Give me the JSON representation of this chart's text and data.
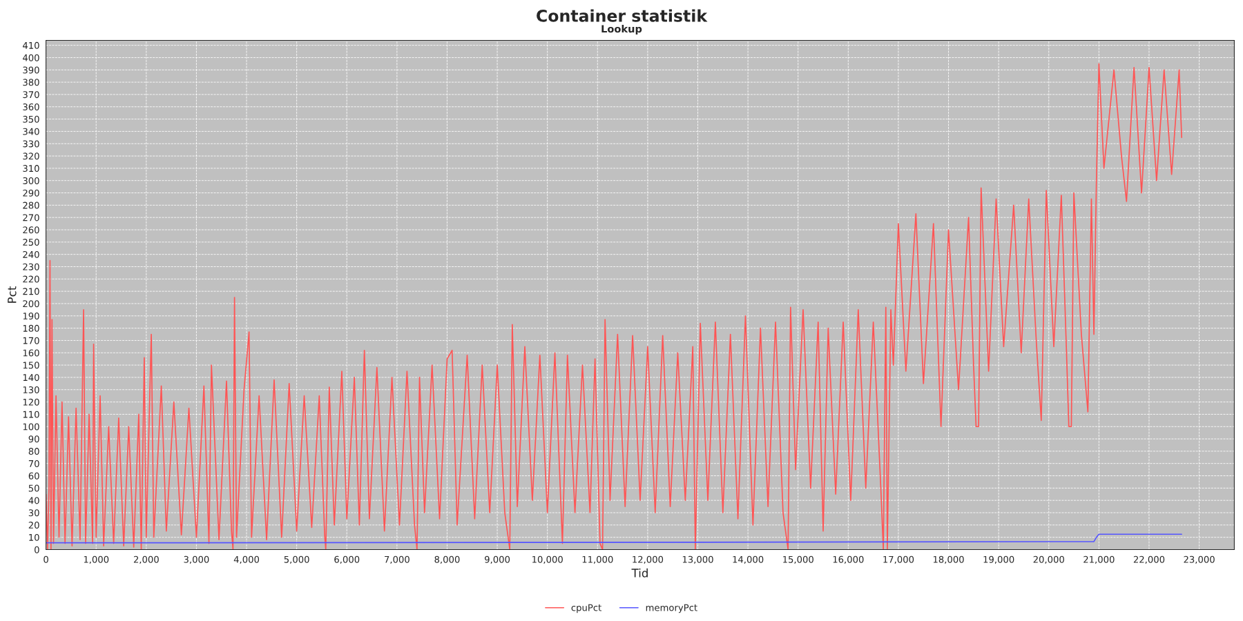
{
  "chart_data": {
    "type": "line",
    "title": "Container statistik",
    "subtitle": "Lookup",
    "xlabel": "Tid",
    "ylabel": "Pct",
    "xlim": [
      0,
      23700
    ],
    "ylim": [
      0,
      414
    ],
    "xticks": [
      0,
      {
        "value": 1000,
        "label": "1,000"
      },
      {
        "value": 2000,
        "label": "2,000"
      },
      {
        "value": 3000,
        "label": "3,000"
      },
      {
        "value": 4000,
        "label": "4,000"
      },
      {
        "value": 5000,
        "label": "5,000"
      },
      {
        "value": 6000,
        "label": "6,000"
      },
      {
        "value": 7000,
        "label": "7,000"
      },
      {
        "value": 8000,
        "label": "8,000"
      },
      {
        "value": 9000,
        "label": "9,000"
      },
      {
        "value": 10000,
        "label": "10,000"
      },
      {
        "value": 11000,
        "label": "11,000"
      },
      {
        "value": 12000,
        "label": "12,000"
      },
      {
        "value": 13000,
        "label": "13,000"
      },
      {
        "value": 14000,
        "label": "14,000"
      },
      {
        "value": 15000,
        "label": "15,000"
      },
      {
        "value": 16000,
        "label": "16,000"
      },
      {
        "value": 17000,
        "label": "17,000"
      },
      {
        "value": 18000,
        "label": "18,000"
      },
      {
        "value": 19000,
        "label": "19,000"
      },
      {
        "value": 20000,
        "label": "20,000"
      },
      {
        "value": 21000,
        "label": "21,000"
      },
      {
        "value": 22000,
        "label": "22,000"
      },
      {
        "value": 23000,
        "label": "23,000"
      }
    ],
    "yticks": [
      0,
      10,
      20,
      30,
      40,
      50,
      60,
      70,
      80,
      90,
      100,
      110,
      120,
      130,
      140,
      150,
      160,
      170,
      180,
      190,
      200,
      210,
      220,
      230,
      240,
      250,
      260,
      270,
      280,
      290,
      300,
      310,
      320,
      330,
      340,
      350,
      360,
      370,
      380,
      390,
      400,
      410
    ],
    "grid": true,
    "legend": "bottom",
    "marker": "none",
    "line_style": "solid",
    "series": [
      {
        "name": "cpuPct",
        "color": "#ff5555",
        "x": [
          0,
          30,
          60,
          80,
          100,
          120,
          150,
          200,
          260,
          320,
          380,
          450,
          520,
          600,
          680,
          750,
          790,
          860,
          930,
          950,
          1000,
          1080,
          1150,
          1250,
          1350,
          1450,
          1550,
          1650,
          1750,
          1850,
          1900,
          1960,
          2000,
          2100,
          2150,
          2300,
          2400,
          2550,
          2700,
          2850,
          3000,
          3150,
          3250,
          3300,
          3450,
          3600,
          3700,
          3730,
          3760,
          3800,
          3950,
          4050,
          4100,
          4250,
          4400,
          4550,
          4700,
          4850,
          5000,
          5150,
          5300,
          5450,
          5560,
          5580,
          5650,
          5750,
          5900,
          6000,
          6150,
          6250,
          6350,
          6450,
          6600,
          6750,
          6900,
          7050,
          7200,
          7350,
          7400,
          7450,
          7550,
          7700,
          7850,
          8000,
          8100,
          8200,
          8400,
          8550,
          8700,
          8850,
          9000,
          9150,
          9250,
          9300,
          9400,
          9550,
          9700,
          9850,
          10000,
          10150,
          10300,
          10400,
          10550,
          10700,
          10850,
          10950,
          11050,
          11100,
          11150,
          11250,
          11400,
          11550,
          11700,
          11850,
          12000,
          12150,
          12300,
          12450,
          12600,
          12750,
          12900,
          12950,
          13050,
          13200,
          13350,
          13500,
          13650,
          13800,
          13950,
          14100,
          14250,
          14400,
          14550,
          14700,
          14800,
          14850,
          14950,
          15100,
          15250,
          15400,
          15500,
          15600,
          15750,
          15900,
          16050,
          16200,
          16350,
          16500,
          16650,
          16700,
          16750,
          16780,
          16850,
          16900,
          17000,
          17150,
          17350,
          17500,
          17700,
          17850,
          18000,
          18200,
          18400,
          18500,
          18550,
          18600,
          18650,
          18800,
          18950,
          19100,
          19300,
          19450,
          19600,
          19750,
          19850,
          19950,
          20100,
          20250,
          20350,
          20400,
          20450,
          20500,
          20650,
          20780,
          20850,
          20900,
          20950,
          21000,
          21100,
          21300,
          21450,
          21550,
          21700,
          21850,
          22000,
          22150,
          22300,
          22450,
          22600,
          22650
        ],
        "values": [
          45,
          0,
          50,
          235,
          0,
          187,
          5,
          125,
          10,
          120,
          5,
          108,
          3,
          115,
          8,
          195,
          5,
          110,
          5,
          167,
          10,
          125,
          3,
          100,
          5,
          107,
          3,
          100,
          2,
          110,
          0,
          156,
          10,
          175,
          10,
          133,
          15,
          120,
          12,
          115,
          10,
          133,
          5,
          150,
          8,
          137,
          15,
          0,
          205,
          10,
          130,
          177,
          10,
          125,
          8,
          138,
          10,
          135,
          15,
          125,
          18,
          125,
          10,
          0,
          132,
          20,
          145,
          25,
          140,
          20,
          162,
          25,
          148,
          15,
          140,
          20,
          145,
          20,
          0,
          140,
          30,
          150,
          25,
          155,
          162,
          20,
          158,
          25,
          150,
          30,
          150,
          30,
          0,
          183,
          35,
          165,
          40,
          158,
          30,
          160,
          5,
          158,
          30,
          150,
          30,
          155,
          5,
          0,
          187,
          40,
          175,
          35,
          174,
          40,
          165,
          30,
          174,
          35,
          160,
          40,
          165,
          0,
          184,
          40,
          185,
          30,
          175,
          25,
          190,
          20,
          180,
          35,
          185,
          30,
          0,
          197,
          65,
          195,
          50,
          185,
          15,
          180,
          45,
          185,
          40,
          195,
          50,
          185,
          50,
          0,
          197,
          0,
          195,
          150,
          265,
          145,
          273,
          135,
          265,
          100,
          260,
          130,
          270,
          150,
          100,
          100,
          294,
          145,
          285,
          165,
          280,
          160,
          285,
          170,
          105,
          292,
          165,
          288,
          165,
          100,
          100,
          290,
          175,
          112,
          285,
          175,
          300,
          395,
          310,
          390,
          320,
          283,
          392,
          290,
          392,
          300,
          390,
          305,
          390,
          335
        ]
      },
      {
        "name": "memoryPct",
        "color": "#5555ff",
        "x": [
          0,
          10000,
          20900,
          20950,
          21000,
          22650
        ],
        "values": [
          5.5,
          5.8,
          6.5,
          10,
          12.5,
          12.5
        ]
      }
    ]
  }
}
